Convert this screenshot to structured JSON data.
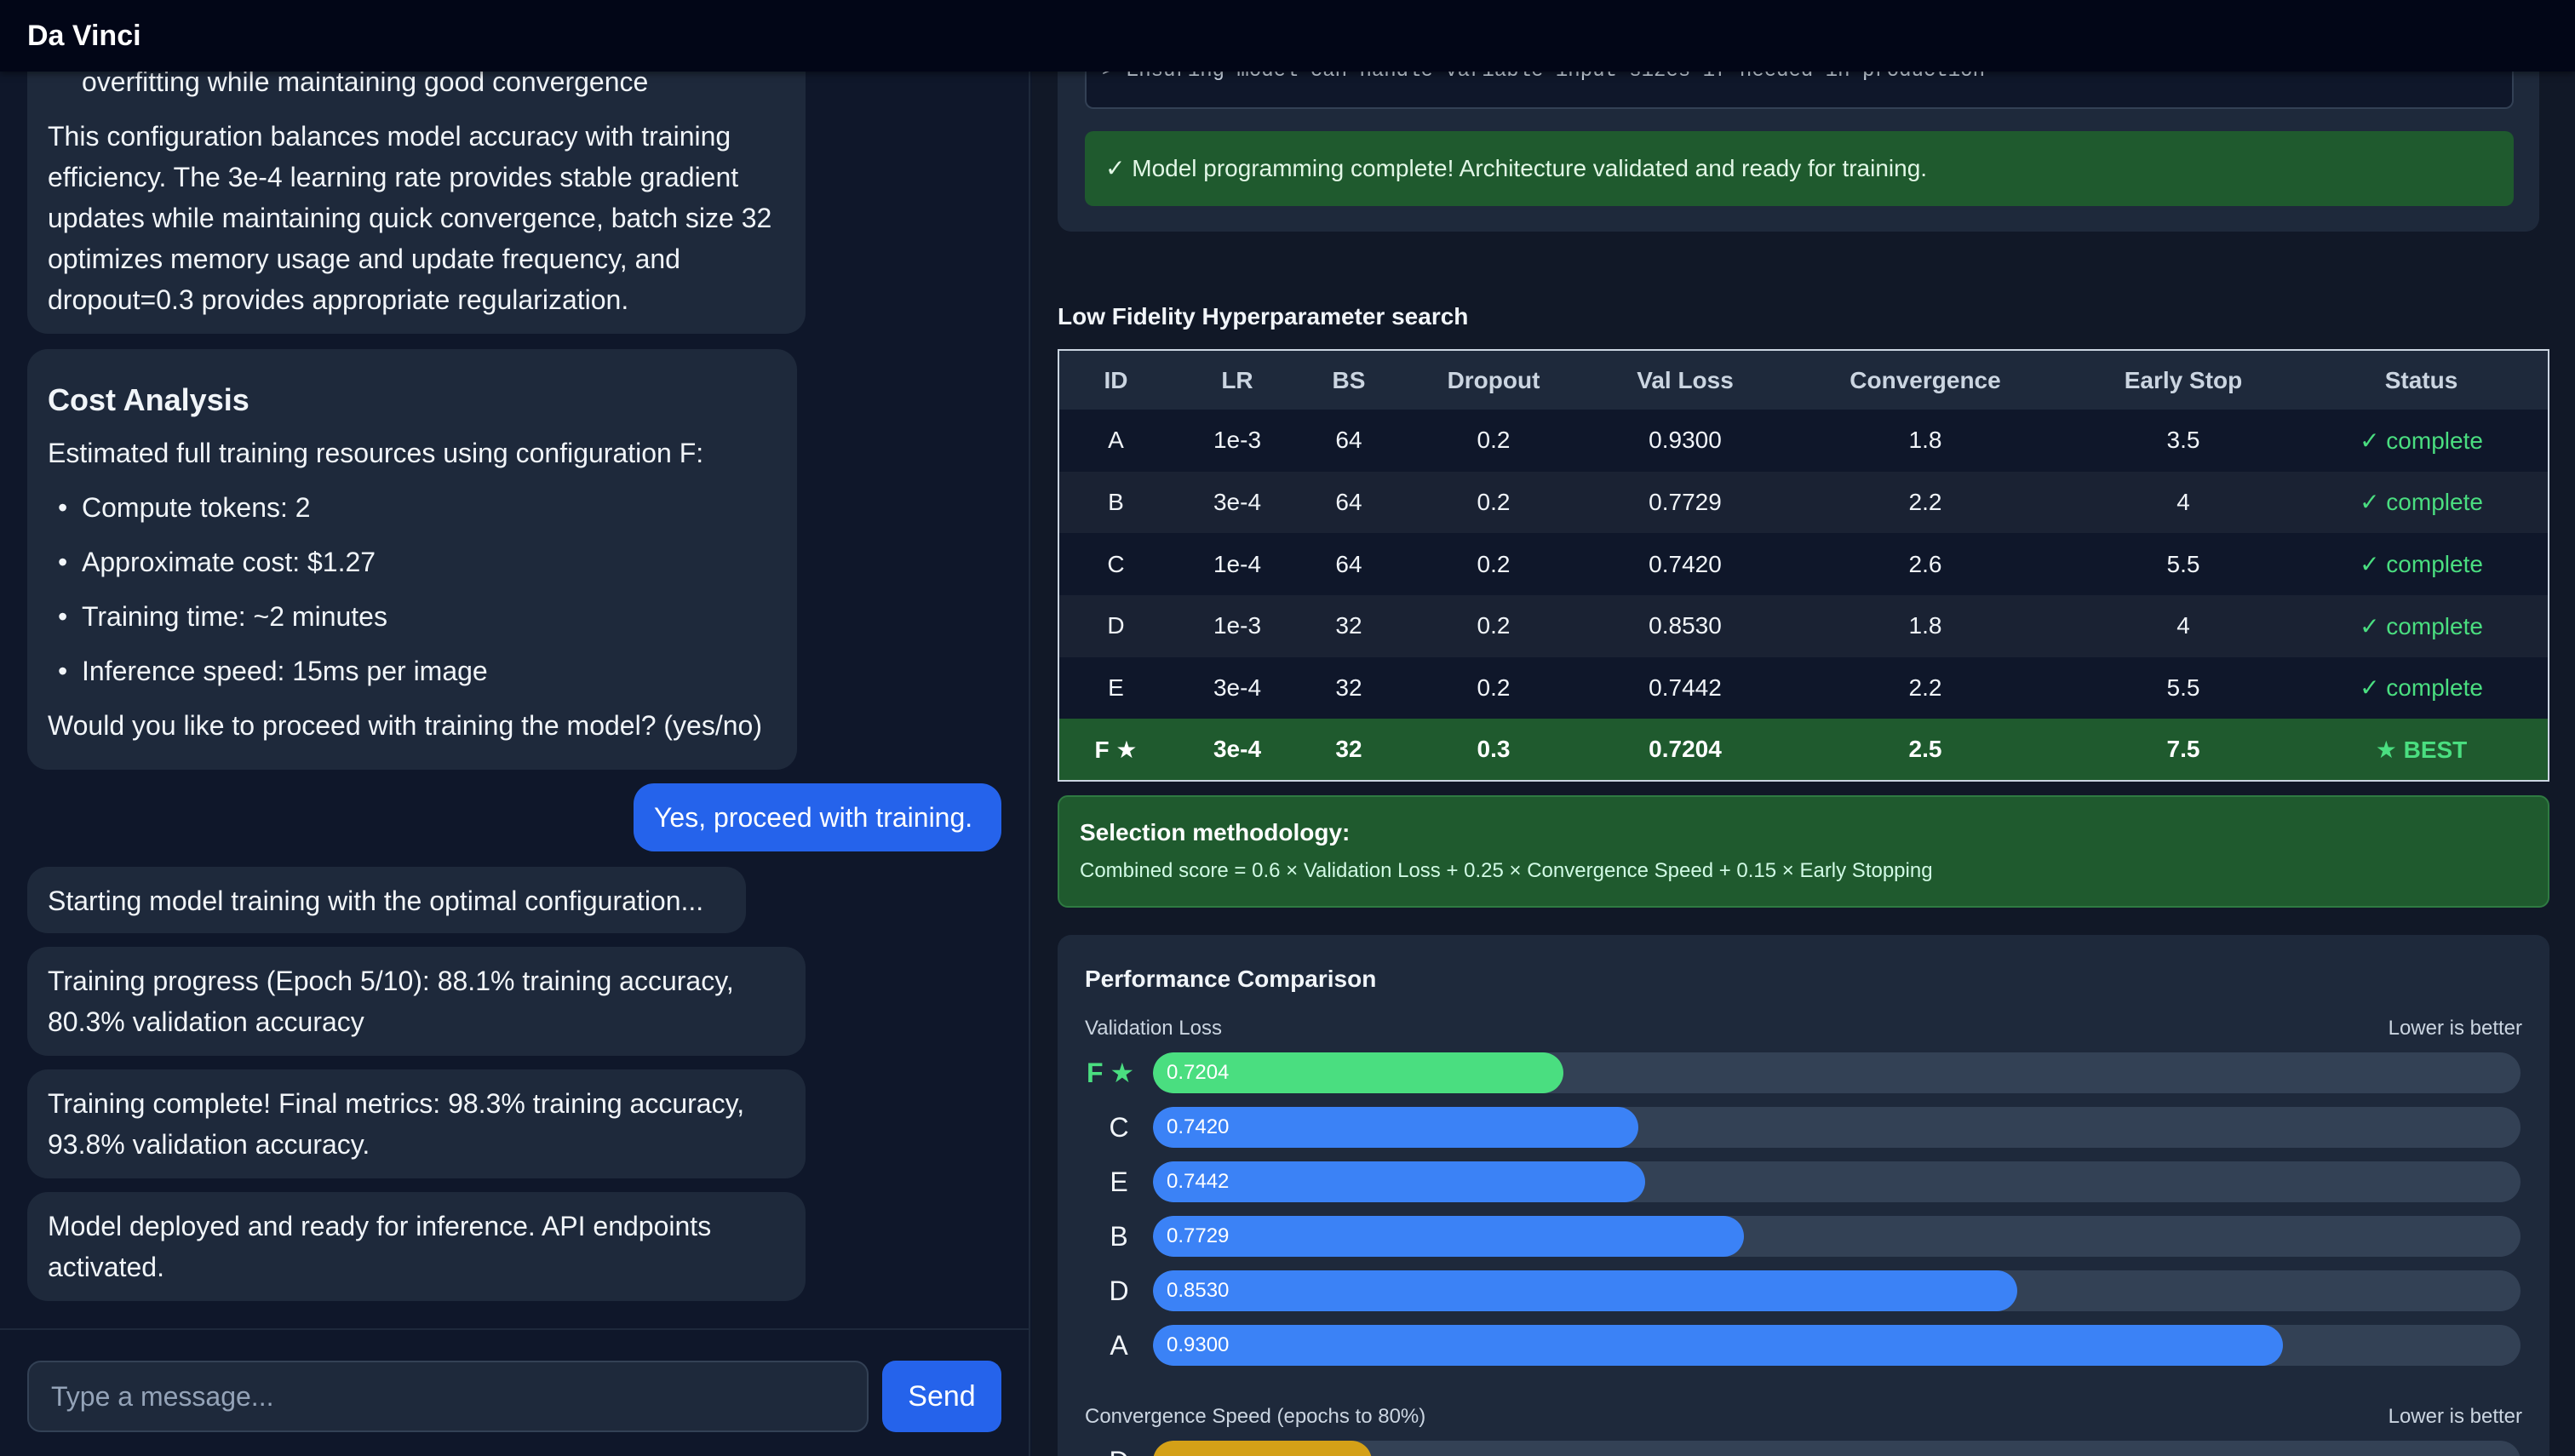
{
  "app": {
    "title": "Da Vinci"
  },
  "chat": {
    "msg1": {
      "bullet_tail": "overfitting while maintaining good convergence",
      "paragraph": "This configuration balances model accuracy with training efficiency. The 3e-4 learning rate provides stable gradient updates while maintaining quick convergence, batch size 32 optimizes memory usage and update frequency, and dropout=0.3 provides appropriate regularization."
    },
    "msg2": {
      "heading": "Cost Analysis",
      "intro": "Estimated full training resources using configuration F:",
      "items": [
        "Compute tokens: 2",
        "Approximate cost: $1.27",
        "Training time: ~2 minutes",
        "Inference speed: 15ms per image"
      ],
      "question": "Would you like to proceed with training the model? (yes/no)"
    },
    "user_msg": "Yes, proceed with training.",
    "msg3": "Starting model training with the optimal configuration...",
    "msg4": "Training progress (Epoch 5/10): 88.1% training accuracy, 80.3% validation accuracy",
    "msg5": "Training complete! Final metrics: 98.3% training accuracy, 93.8% validation accuracy.",
    "msg6": "Model deployed and ready for inference. API endpoints activated.",
    "input_placeholder": "Type a message...",
    "send_label": "Send"
  },
  "programming": {
    "code_line": "> Ensuring model can handle variable input sizes if needed in production",
    "success": "✓ Model programming complete! Architecture validated and ready for training."
  },
  "hp_search": {
    "title": "Low Fidelity Hyperparameter search",
    "columns": [
      "ID",
      "LR",
      "BS",
      "Dropout",
      "Val Loss",
      "Convergence",
      "Early Stop",
      "Status"
    ],
    "rows": [
      {
        "id": "A",
        "lr": "1e-3",
        "bs": "64",
        "dropout": "0.2",
        "val_loss": "0.9300",
        "convergence": "1.8",
        "early_stop": "3.5",
        "status": "✓ complete"
      },
      {
        "id": "B",
        "lr": "3e-4",
        "bs": "64",
        "dropout": "0.2",
        "val_loss": "0.7729",
        "convergence": "2.2",
        "early_stop": "4",
        "status": "✓ complete"
      },
      {
        "id": "C",
        "lr": "1e-4",
        "bs": "64",
        "dropout": "0.2",
        "val_loss": "0.7420",
        "convergence": "2.6",
        "early_stop": "5.5",
        "status": "✓ complete"
      },
      {
        "id": "D",
        "lr": "1e-3",
        "bs": "32",
        "dropout": "0.2",
        "val_loss": "0.8530",
        "convergence": "1.8",
        "early_stop": "4",
        "status": "✓ complete"
      },
      {
        "id": "E",
        "lr": "3e-4",
        "bs": "32",
        "dropout": "0.2",
        "val_loss": "0.7442",
        "convergence": "2.2",
        "early_stop": "5.5",
        "status": "✓ complete"
      }
    ],
    "best_row": {
      "id": "F",
      "lr": "3e-4",
      "bs": "32",
      "dropout": "0.3",
      "val_loss": "0.7204",
      "convergence": "2.5",
      "early_stop": "7.5",
      "status": "BEST"
    },
    "star_glyph": "★"
  },
  "methodology": {
    "title": "Selection methodology:",
    "text": "Combined score = 0.6 × Validation Loss + 0.25 × Convergence Speed + 0.15 × Early Stopping"
  },
  "performance": {
    "title": "Performance Comparison",
    "val_loss_label": "Validation Loss",
    "val_loss_hint": "Lower is better",
    "conv_label": "Convergence Speed (epochs to 80%)",
    "conv_hint": "Lower is better",
    "val_loss_bars": [
      {
        "id": "F",
        "value": "0.7204",
        "fraction": 0.3,
        "best": true
      },
      {
        "id": "C",
        "value": "0.7420",
        "fraction": 0.355,
        "best": false
      },
      {
        "id": "E",
        "value": "0.7442",
        "fraction": 0.36,
        "best": false
      },
      {
        "id": "B",
        "value": "0.7729",
        "fraction": 0.432,
        "best": false
      },
      {
        "id": "D",
        "value": "0.8530",
        "fraction": 0.632,
        "best": false
      },
      {
        "id": "A",
        "value": "0.9300",
        "fraction": 0.826,
        "best": false
      }
    ],
    "conv_first_bar": {
      "id": "D",
      "fraction": 0.16
    }
  },
  "colors": {
    "accent_blue": "#2563eb",
    "bar_blue": "#3b82f6",
    "best_green": "#4ade80",
    "success_bg": "#1f5a2e",
    "conv_gold": "#d4a017"
  }
}
